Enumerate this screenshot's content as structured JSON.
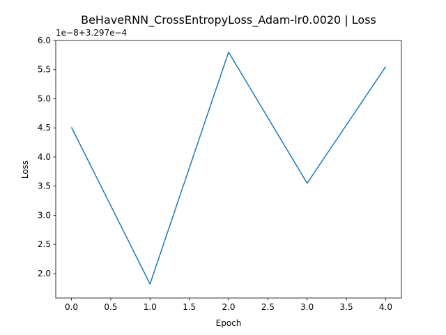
{
  "chart_data": {
    "type": "line",
    "title": "BeHaveRNN_CrossEntropyLoss_Adam-lr0.0020 | Loss",
    "xlabel": "Epoch",
    "ylabel": "Loss",
    "offset_label": "1e−8+3.297e−4",
    "xlim": [
      -0.2,
      4.2
    ],
    "ylim": [
      1.58,
      6.0
    ],
    "x_ticks": [
      0.0,
      0.5,
      1.0,
      1.5,
      2.0,
      2.5,
      3.0,
      3.5,
      4.0
    ],
    "x_tick_labels": [
      "0.0",
      "0.5",
      "1.0",
      "1.5",
      "2.0",
      "2.5",
      "3.0",
      "3.5",
      "4.0"
    ],
    "y_ticks": [
      2.0,
      2.5,
      3.0,
      3.5,
      4.0,
      4.5,
      5.0,
      5.5,
      6.0
    ],
    "y_tick_labels": [
      "2.0",
      "2.5",
      "3.0",
      "3.5",
      "4.0",
      "4.5",
      "5.0",
      "5.5",
      "6.0"
    ],
    "grid": false,
    "series": [
      {
        "color": "#1f77b4",
        "x": [
          0,
          1,
          2,
          3,
          4
        ],
        "y": [
          4.51,
          1.82,
          5.8,
          3.55,
          5.55
        ]
      }
    ]
  }
}
